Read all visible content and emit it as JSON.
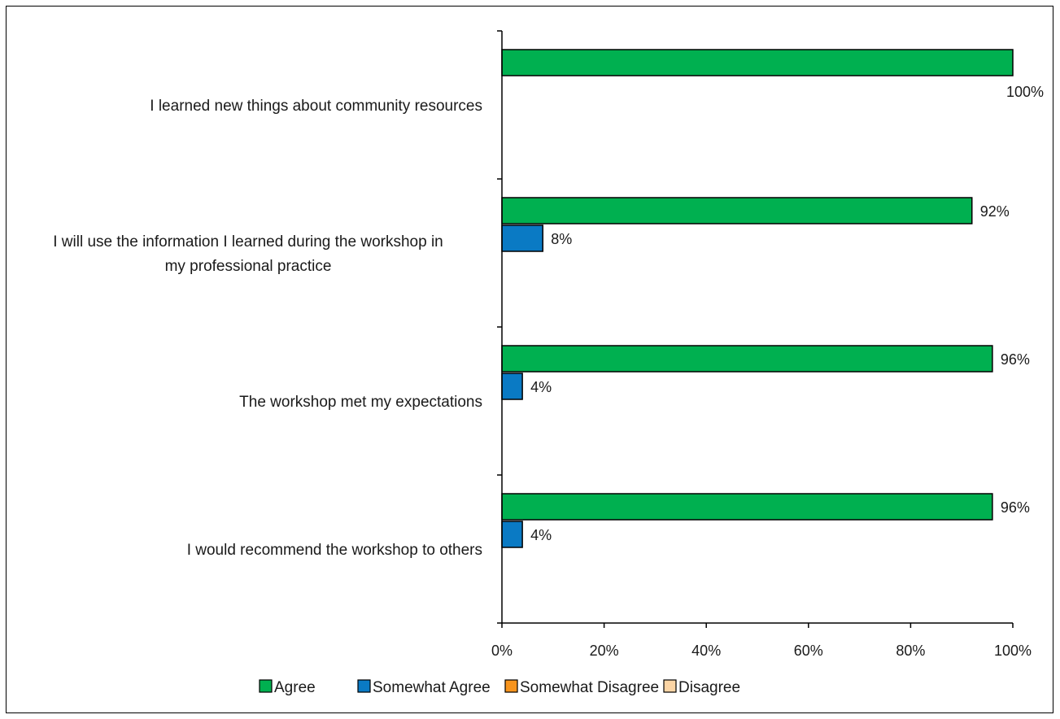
{
  "chart_data": {
    "type": "bar",
    "orientation": "horizontal",
    "categories": [
      [
        "I learned new things about community resources"
      ],
      [
        "I will use the information I learned during the workshop in",
        "my professional practice"
      ],
      [
        "The workshop met my expectations"
      ],
      [
        "I would recommend the workshop to others"
      ]
    ],
    "series": [
      {
        "name": "Agree",
        "color": "#00b050",
        "values": [
          100,
          92,
          96,
          96
        ],
        "labels": [
          "100%",
          "92%",
          "96%",
          "96%"
        ]
      },
      {
        "name": "Somewhat Agree",
        "color": "#0a7ac4",
        "values": [
          0,
          8,
          4,
          4
        ],
        "labels": [
          "",
          "8%",
          "4%",
          "4%"
        ]
      },
      {
        "name": "Somewhat Disagree",
        "color": "#f7941d",
        "values": [
          0,
          0,
          0,
          0
        ],
        "labels": [
          "",
          "",
          "",
          ""
        ]
      },
      {
        "name": "Disagree",
        "color": "#fcd5a5",
        "values": [
          0,
          0,
          0,
          0
        ],
        "labels": [
          "",
          "",
          "",
          ""
        ]
      }
    ],
    "xlim": [
      0,
      100
    ],
    "xticks": [
      "0%",
      "20%",
      "40%",
      "60%",
      "80%",
      "100%"
    ],
    "xlabel": "",
    "ylabel": "",
    "title": "",
    "grid": false,
    "legend": "bottom"
  }
}
